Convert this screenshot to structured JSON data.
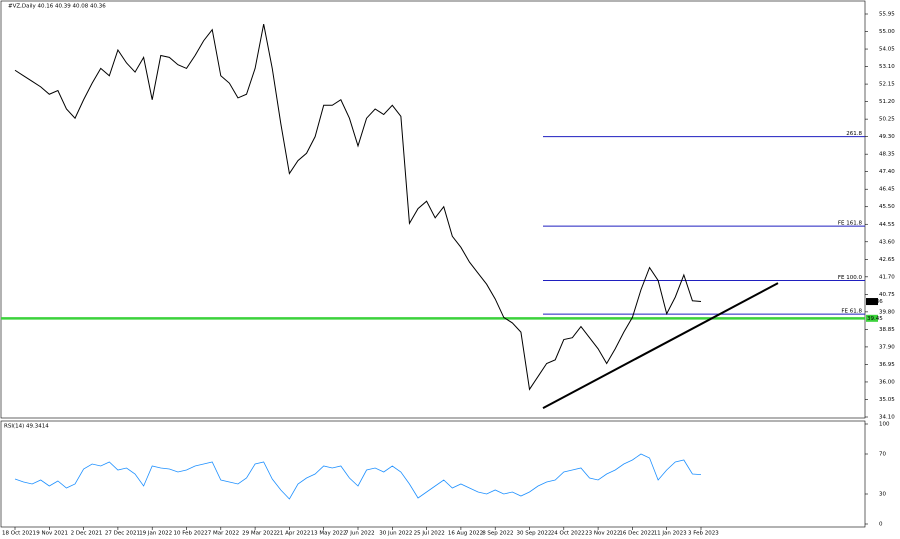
{
  "chart_data": {
    "type": "line",
    "title": "#VZ,Daily 40.16 40.39 40.08 40.36",
    "categories": [
      "18 Oct 2021",
      null,
      null,
      null,
      "9 Nov 2021",
      null,
      null,
      null,
      "2 Dec 2021",
      null,
      null,
      null,
      "27 Dec 2021",
      null,
      null,
      null,
      "19 Jan 2022",
      null,
      null,
      null,
      "10 Feb 2022",
      null,
      null,
      null,
      "7 Mar 2022",
      null,
      null,
      null,
      "29 Mar 2022",
      null,
      null,
      null,
      "21 Apr 2022",
      null,
      null,
      null,
      "13 May 2022",
      null,
      null,
      null,
      "7 Jun 2022",
      null,
      null,
      null,
      "30 Jun 2022",
      null,
      null,
      null,
      "25 Jul 2022",
      null,
      null,
      null,
      "16 Aug 2022",
      null,
      null,
      null,
      "8 Sep 2022",
      null,
      null,
      null,
      "30 Sep 2022",
      null,
      null,
      null,
      "24 Oct 2022",
      null,
      null,
      null,
      "23 Nov 2022",
      null,
      null,
      null,
      "16 Dec 2022",
      null,
      null,
      null,
      "11 Jan 2023",
      null,
      null,
      null,
      "3 Feb 2023"
    ],
    "series": [
      {
        "name": "#VZ,Daily",
        "color": "#000000",
        "values": [
          52.9,
          52.6,
          52.3,
          52.0,
          51.6,
          51.8,
          50.8,
          50.3,
          51.3,
          52.2,
          53.0,
          52.6,
          54.0,
          53.3,
          52.8,
          53.6,
          51.3,
          53.7,
          53.6,
          53.2,
          53.0,
          53.7,
          54.5,
          55.1,
          52.6,
          52.2,
          51.4,
          51.6,
          53.0,
          55.4,
          53.0,
          50.0,
          47.3,
          48.0,
          48.4,
          49.3,
          51.0,
          51.0,
          51.3,
          50.3,
          48.8,
          50.3,
          50.8,
          50.5,
          51.0,
          50.4,
          44.6,
          45.4,
          45.8,
          44.9,
          45.5,
          43.9,
          43.3,
          42.5,
          41.9,
          41.3,
          40.5,
          39.5,
          39.2,
          38.7,
          35.6,
          36.3,
          37.0,
          37.2,
          38.3,
          38.4,
          39.0,
          38.4,
          37.8,
          37.0,
          37.8,
          38.7,
          39.5,
          41.0,
          42.2,
          41.5,
          39.7,
          40.6,
          41.8,
          40.4,
          40.36
        ]
      }
    ],
    "ylim": [
      34.1,
      55.95
    ],
    "yticks": [
      55.95,
      {
        "value": 55,
        "label": "55.00"
      },
      54.05,
      {
        "value": 53.1,
        "label": "53.10"
      },
      52.15,
      {
        "value": 51.2,
        "label": "51.20"
      },
      50.25,
      {
        "value": 49.3,
        "label": "49.30"
      },
      48.35,
      {
        "value": 47.4,
        "label": "47.40"
      },
      46.45,
      {
        "value": 45.5,
        "label": "45.50"
      },
      44.55,
      {
        "value": 43.6,
        "label": "43.60"
      },
      42.65,
      {
        "value": 41.7,
        "label": "41.70"
      },
      40.75,
      {
        "value": 39.8,
        "label": "39.80"
      },
      38.85,
      {
        "value": 37.9,
        "label": "37.90"
      },
      36.95,
      {
        "value": 36,
        "label": "36.00"
      },
      35.05,
      {
        "value": 34.1,
        "label": "34.10"
      }
    ],
    "levels": [
      {
        "label": "261.8",
        "value": 49.3,
        "color": "#1f1fbf"
      },
      {
        "label": "FE 161.8",
        "value": 44.45,
        "color": "#1f1fbf"
      },
      {
        "label": "FE 100.0",
        "value": 41.5,
        "color": "#1f1fbf"
      },
      {
        "label": "FE 61.8",
        "value": 39.68,
        "color": "#1f1fbf"
      }
    ],
    "support": {
      "value": 39.45,
      "color": "#3cd23c"
    },
    "trendline": {
      "values": [
        34.58,
        41.36
      ],
      "color": "#000000"
    },
    "rsi": {
      "title": "RSI(14) 49.3414",
      "color": "#1e90ff",
      "ylim": [
        0,
        100
      ],
      "yticks": [
        100,
        70,
        30,
        0
      ],
      "values": [
        45,
        42,
        40,
        44,
        38,
        43,
        36,
        40,
        55,
        60,
        58,
        62,
        54,
        56,
        50,
        38,
        58,
        56,
        55,
        52,
        54,
        58,
        60,
        62,
        44,
        42,
        40,
        46,
        60,
        62,
        45,
        34,
        25,
        40,
        46,
        50,
        58,
        56,
        58,
        46,
        38,
        54,
        56,
        52,
        58,
        52,
        40,
        26,
        32,
        38,
        44,
        36,
        40,
        36,
        32,
        30,
        34,
        30,
        32,
        28,
        32,
        38,
        42,
        44,
        52,
        54,
        56,
        46,
        44,
        50,
        54,
        60,
        64,
        70,
        66,
        44,
        54,
        62,
        64,
        50,
        49.34
      ]
    }
  }
}
